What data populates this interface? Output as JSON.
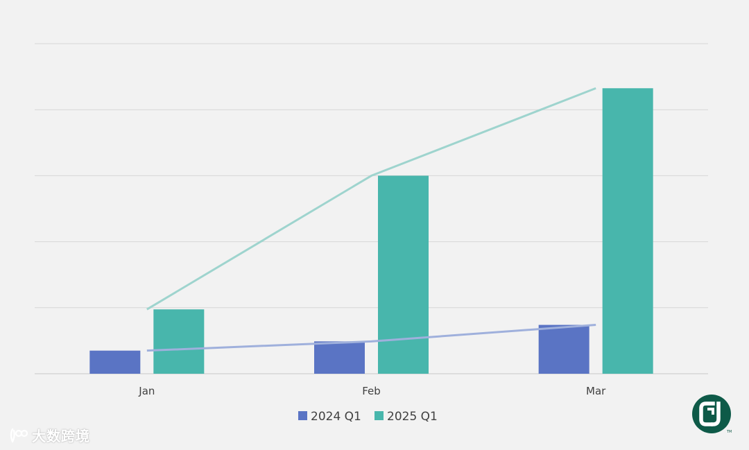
{
  "chart_data": {
    "type": "bar",
    "categories": [
      "Jan",
      "Feb",
      "Mar"
    ],
    "series": [
      {
        "name": "2024 Q1",
        "values": [
          7,
          9.8,
          14.8
        ],
        "color": "#5a74c4",
        "trendline": true,
        "trend_color": "#9fb0dc"
      },
      {
        "name": "2025 Q1",
        "values": [
          19.5,
          60,
          86.5
        ],
        "color": "#48b6ac",
        "trendline": true,
        "trend_color": "#9ed4ce"
      }
    ],
    "ylim": [
      0,
      100
    ],
    "y_gridlines": [
      0,
      20,
      40,
      60,
      80,
      100
    ],
    "y_tick_labels_shown": false,
    "grid": true,
    "legend_position": "bottom"
  },
  "watermark": {
    "text": "大数跨境",
    "icon": "double-loop-logo-icon"
  },
  "brand_logo": {
    "icon": "cj-logo-icon",
    "color": "#0e5a48"
  },
  "colors": {
    "background": "#f2f2f2",
    "gridline": "#d6d6d6",
    "axis": "#c8c8c8"
  }
}
